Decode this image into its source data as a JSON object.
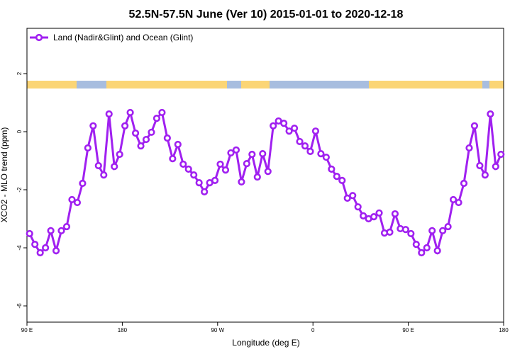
{
  "chart_data": {
    "type": "line",
    "title": "52.5N-57.5N June (Ver 10)   2015-01-01 to 2020-12-18",
    "xlabel": "Longitude (deg E)",
    "ylabel": "XCO2 - MLO trend (ppm)",
    "legend": "topleft",
    "x": [
      92.5,
      97.5,
      102.5,
      107.5,
      112.5,
      117.5,
      122.5,
      127.5,
      132.5,
      137.5,
      142.5,
      147.5,
      152.5,
      157.5,
      162.5,
      167.5,
      172.5,
      177.5,
      182.5,
      187.5,
      192.5,
      197.5,
      202.5,
      207.5,
      212.5,
      217.5,
      222.5,
      227.5,
      232.5,
      237.5,
      242.5,
      247.5,
      252.5,
      257.5,
      262.5,
      267.5,
      272.5,
      277.5,
      282.5,
      287.5,
      292.5,
      297.5,
      302.5,
      307.5,
      312.5,
      317.5,
      322.5,
      327.5,
      332.5,
      337.5,
      342.5,
      347.5,
      352.5,
      357.5,
      362.5,
      367.5,
      372.5,
      377.5,
      382.5,
      387.5,
      392.5,
      397.5,
      402.5,
      407.5,
      412.5,
      417.5,
      422.5,
      427.5,
      432.5,
      437.5,
      442.5,
      447.5,
      452.5,
      457.5,
      462.5,
      467.5,
      472.5,
      477.5,
      482.5,
      487.5,
      492.5,
      497.5,
      502.5,
      507.5,
      512.5,
      517.5,
      522.5,
      527.5,
      532.5,
      537.5
    ],
    "series": [
      {
        "name": "Land (Nadir&Glint) and Ocean (Glint)",
        "color": "#a020f0",
        "values": [
          -3.51,
          -3.88,
          -4.17,
          -4.0,
          -3.41,
          -4.1,
          -3.41,
          -3.27,
          -2.34,
          -2.44,
          -1.78,
          -0.56,
          0.2,
          -1.17,
          -1.49,
          0.61,
          -1.2,
          -0.78,
          0.2,
          0.66,
          -0.05,
          -0.49,
          -0.27,
          -0.02,
          0.46,
          0.66,
          -0.22,
          -0.93,
          -0.44,
          -1.12,
          -1.29,
          -1.49,
          -1.76,
          -2.07,
          -1.76,
          -1.68,
          -1.12,
          -1.32,
          -0.73,
          -0.63,
          -1.73,
          -1.1,
          -0.78,
          -1.56,
          -0.76,
          -1.37,
          0.2,
          0.37,
          0.29,
          0.02,
          0.12,
          -0.34,
          -0.49,
          -0.68,
          0.02,
          -0.76,
          -0.88,
          -1.29,
          -1.54,
          -1.68,
          -2.29,
          -2.2,
          -2.59,
          -2.9,
          -3.0,
          -2.93,
          -2.8,
          -3.49,
          -3.46,
          -2.83,
          -3.34,
          -3.37,
          -3.51,
          -3.88,
          -4.17,
          -4.0,
          -3.41,
          -4.1,
          -3.41,
          -3.27,
          -2.34,
          -2.44,
          -1.78,
          -0.56,
          0.2,
          -1.17,
          -1.49,
          0.61,
          -1.2,
          -0.78
        ]
      }
    ],
    "xlim": [
      90,
      540
    ],
    "xticks": [
      {
        "value": 90,
        "label": "90 E"
      },
      180,
      {
        "value": 270,
        "label": "90 W"
      },
      {
        "value": 360,
        "label": "0"
      },
      {
        "value": 450,
        "label": "90 E"
      },
      {
        "value": 540,
        "label": "180"
      }
    ],
    "ylim": [
      -6.56,
      3.56
    ],
    "yticks": [
      -6,
      -4,
      -2,
      0,
      2
    ]
  }
}
